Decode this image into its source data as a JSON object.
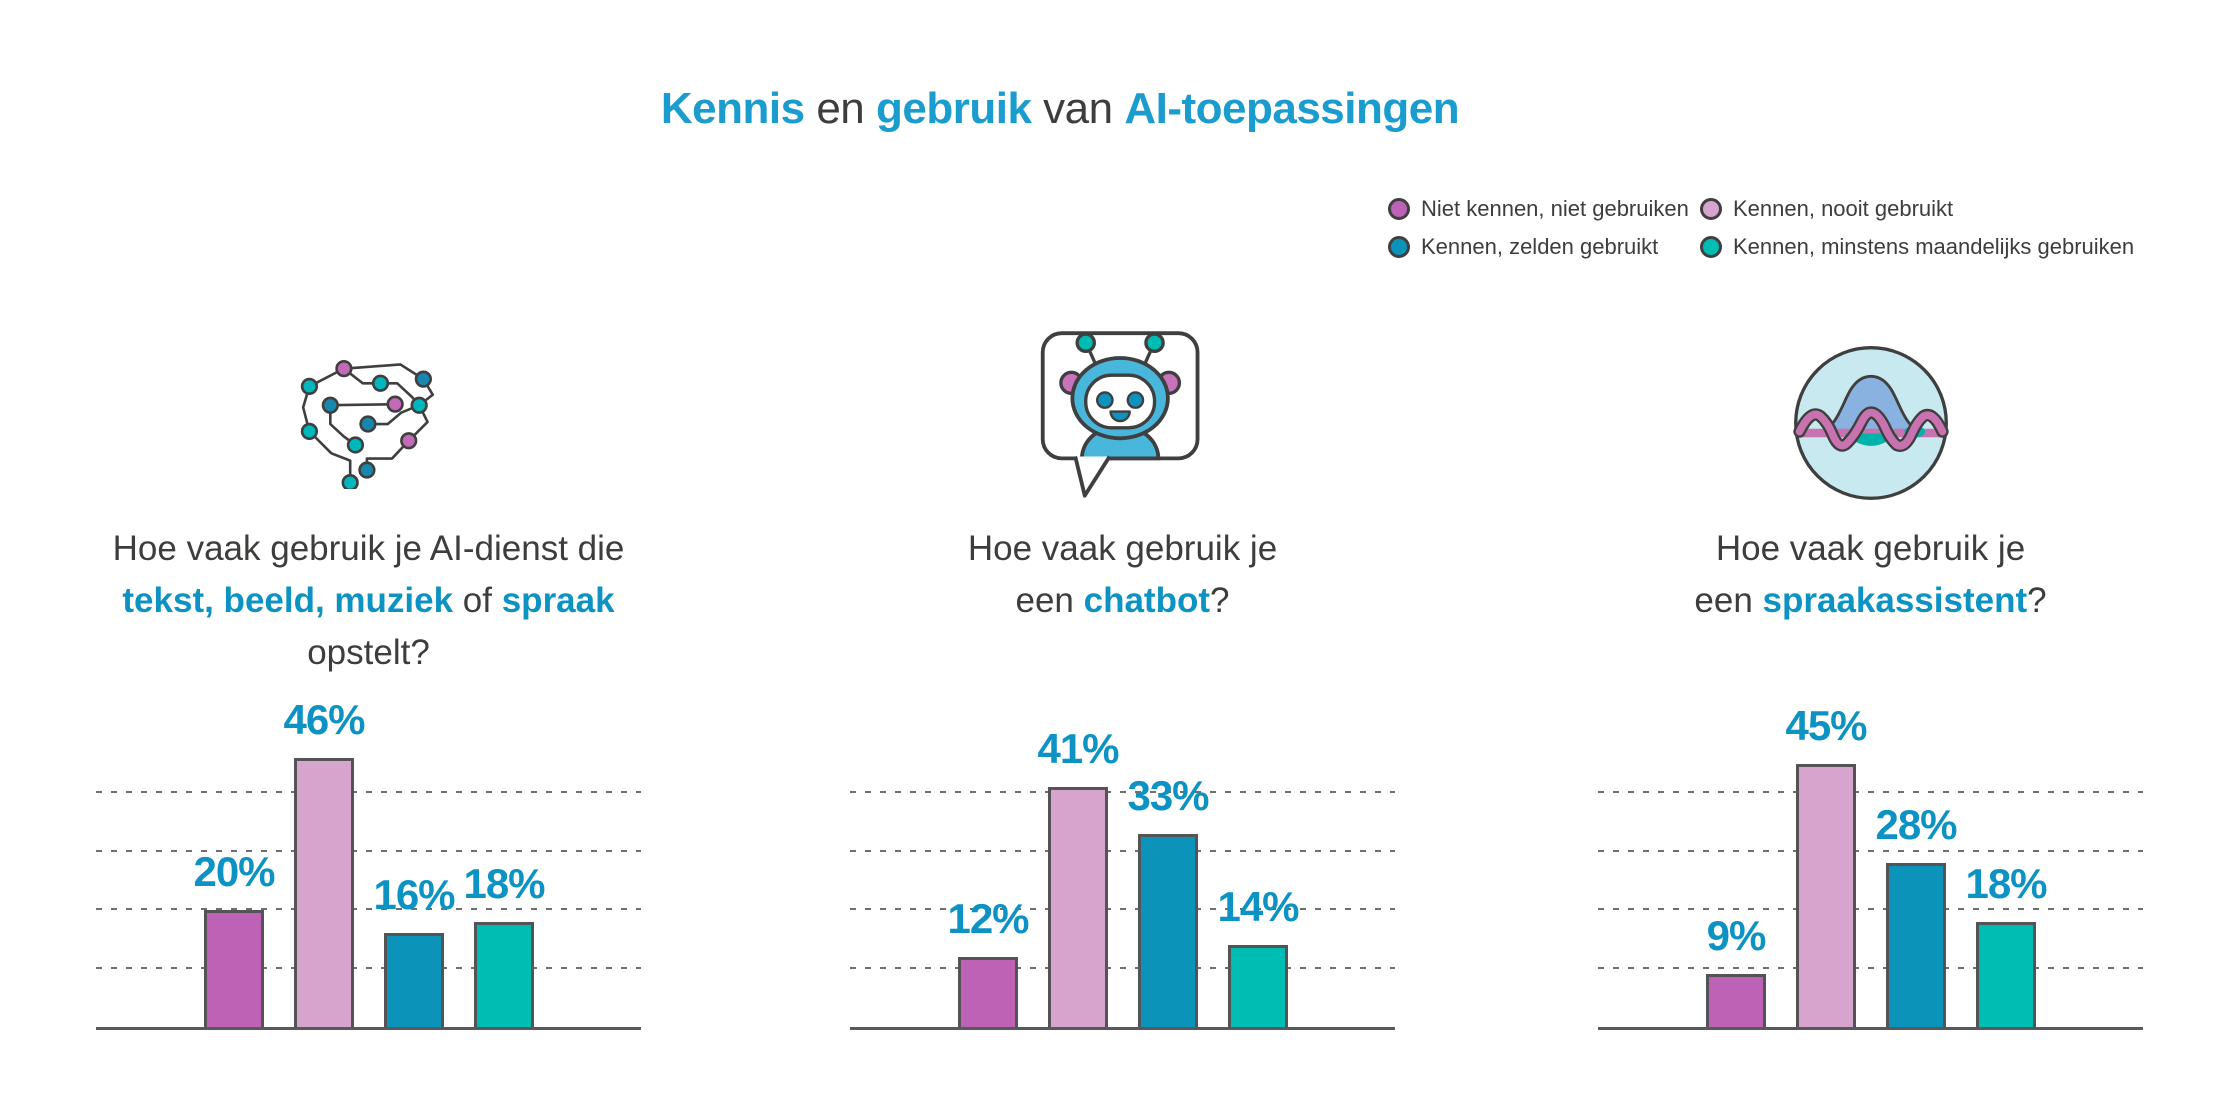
{
  "title": {
    "full_text": "Kennis en gebruik van AI-toepassingen",
    "segments": [
      {
        "text": "Kennis",
        "bold": true
      },
      {
        "text": " en ",
        "bold": false
      },
      {
        "text": "gebruik",
        "bold": true
      },
      {
        "text": " van ",
        "bold": false
      },
      {
        "text": "AI-toepassingen",
        "bold": true
      }
    ]
  },
  "colors": {
    "accent_title": "#1a9cce",
    "accent_value": "#0d93c3",
    "text_dark": "#3d3d3c",
    "bar_outline": "#545456",
    "axis_line": "#58595b",
    "gridline": "#6e6e6e",
    "series": [
      "#bd62b4",
      "#d7a4ce",
      "#0b93ba",
      "#00bdb4"
    ]
  },
  "legend": {
    "items": [
      {
        "label": "Niet kennen, niet gebruiken",
        "color": "#bd62b4"
      },
      {
        "label": "Kennen, nooit gebruikt",
        "color": "#d7a4ce"
      },
      {
        "label": "Kennen, zelden gebruikt",
        "color": "#0b93ba"
      },
      {
        "label": "Kennen, minstens maandelijks gebruiken",
        "color": "#00bdb4"
      }
    ]
  },
  "chart_data": [
    {
      "type": "bar",
      "icon": "brain-icon",
      "question_text": "Hoe vaak gebruik je AI-dienst die tekst, beeld, muziek of spraak opstelt?",
      "question_lines": [
        [
          {
            "text": "Hoe vaak gebruik je AI-dienst die",
            "bold": false
          }
        ],
        [
          {
            "text": "tekst, beeld, muziek",
            "bold": true
          },
          {
            "text": " of ",
            "bold": false
          },
          {
            "text": "spraak",
            "bold": true
          }
        ],
        [
          {
            "text": "opstelt?",
            "bold": false
          }
        ]
      ],
      "categories": [
        "Niet kennen, niet gebruiken",
        "Kennen, nooit gebruikt",
        "Kennen, zelden gebruikt",
        "Kennen, minstens maandelijks gebruiken"
      ],
      "values": [
        20,
        46,
        16,
        18
      ],
      "value_labels": [
        "20%",
        "46%",
        "16%",
        "18%"
      ],
      "ylim": [
        0,
        50
      ],
      "gridlines": [
        10,
        20,
        30,
        40
      ],
      "grid": true,
      "legend_position": "top-right"
    },
    {
      "type": "bar",
      "icon": "chatbot-icon",
      "question_text": "Hoe vaak gebruik je een chatbot?",
      "question_lines": [
        [
          {
            "text": "Hoe vaak gebruik je",
            "bold": false
          }
        ],
        [
          {
            "text": "een ",
            "bold": false
          },
          {
            "text": "chatbot",
            "bold": true
          },
          {
            "text": "?",
            "bold": false
          }
        ]
      ],
      "categories": [
        "Niet kennen, niet gebruiken",
        "Kennen, nooit gebruikt",
        "Kennen, zelden gebruikt",
        "Kennen, minstens maandelijks gebruiken"
      ],
      "values": [
        12,
        41,
        33,
        14
      ],
      "value_labels": [
        "12%",
        "41%",
        "33%",
        "14%"
      ],
      "ylim": [
        0,
        50
      ],
      "gridlines": [
        10,
        20,
        30,
        40
      ],
      "grid": true,
      "legend_position": "top-right"
    },
    {
      "type": "bar",
      "icon": "voice-assistant-icon",
      "question_text": "Hoe vaak gebruik je een spraakassistent?",
      "question_lines": [
        [
          {
            "text": "Hoe vaak gebruik je",
            "bold": false
          }
        ],
        [
          {
            "text": "een ",
            "bold": false
          },
          {
            "text": "spraakassistent",
            "bold": true
          },
          {
            "text": "?",
            "bold": false
          }
        ]
      ],
      "categories": [
        "Niet kennen, niet gebruiken",
        "Kennen, nooit gebruikt",
        "Kennen, zelden gebruikt",
        "Kennen, minstens maandelijks gebruiken"
      ],
      "values": [
        9,
        45,
        28,
        18
      ],
      "value_labels": [
        "9%",
        "45%",
        "28%",
        "18%"
      ],
      "ylim": [
        0,
        50
      ],
      "gridlines": [
        10,
        20,
        30,
        40
      ],
      "grid": true,
      "legend_position": "top-right"
    }
  ]
}
